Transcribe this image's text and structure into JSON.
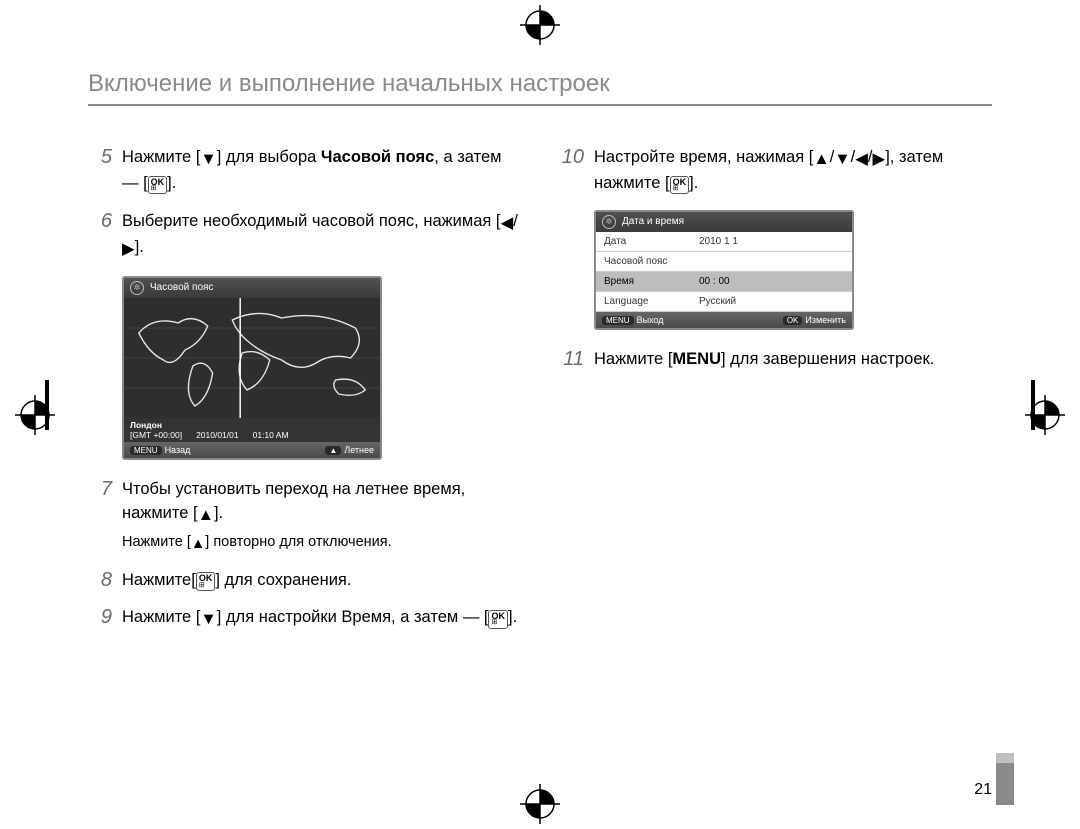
{
  "page_number": "21",
  "title": "Включение и выполнение начальных настроек",
  "steps_left": [
    {
      "num": "5",
      "html": "Нажмите [▼] для выбора <b>Часовой пояс</b>, а затем — [OK]."
    },
    {
      "num": "6",
      "html": "Выберите необходимый часовой пояс, нажимая [◀/▶]."
    },
    {
      "num": "7",
      "html": "Чтобы установить переход на летнее время, нажмите [▲].",
      "sub": "Нажмите [▲] повторно для отключения."
    },
    {
      "num": "8",
      "html": "Нажмите[OK] для сохранения."
    },
    {
      "num": "9",
      "html": "Нажмите [▼] для настройки Время, а затем — [OK]."
    }
  ],
  "steps_right": [
    {
      "num": "10",
      "html": "Настройте время, нажимая [▲/▼/◀/▶], затем нажмите [OK]."
    },
    {
      "num": "11",
      "html": "Нажмите [<b>MENU</b>] для завершения настроек."
    }
  ],
  "tz_screen": {
    "title": "Часовой пояс",
    "city": "Лондон",
    "gmt": "[GMT +00:00]",
    "date": "2010/01/01",
    "time": "01:10 AM",
    "back_btn": "MENU",
    "back_label": "Назад",
    "dst_btn": "▲",
    "dst_label": "Летнее",
    "map_outline_color": "#e6e6e6",
    "map_bg": "#2e2e2e"
  },
  "dt_screen": {
    "title": "Дата и время",
    "rows": [
      {
        "k": "Дата",
        "v": "2010  1  1",
        "sel": false
      },
      {
        "k": "Часовой пояс",
        "v": "",
        "sel": false
      },
      {
        "k": "Время",
        "v": "00 : 00",
        "sel": true
      },
      {
        "k": "Language",
        "v": "Русский",
        "sel": false
      }
    ],
    "exit_btn": "MENU",
    "exit_label": "Выход",
    "ok_btn": "OK",
    "ok_label": "Изменить"
  },
  "colors": {
    "title_gray": "#8a8a8a",
    "step_num_gray": "#6a6a6a",
    "text": "#000000",
    "bg": "#ffffff"
  }
}
